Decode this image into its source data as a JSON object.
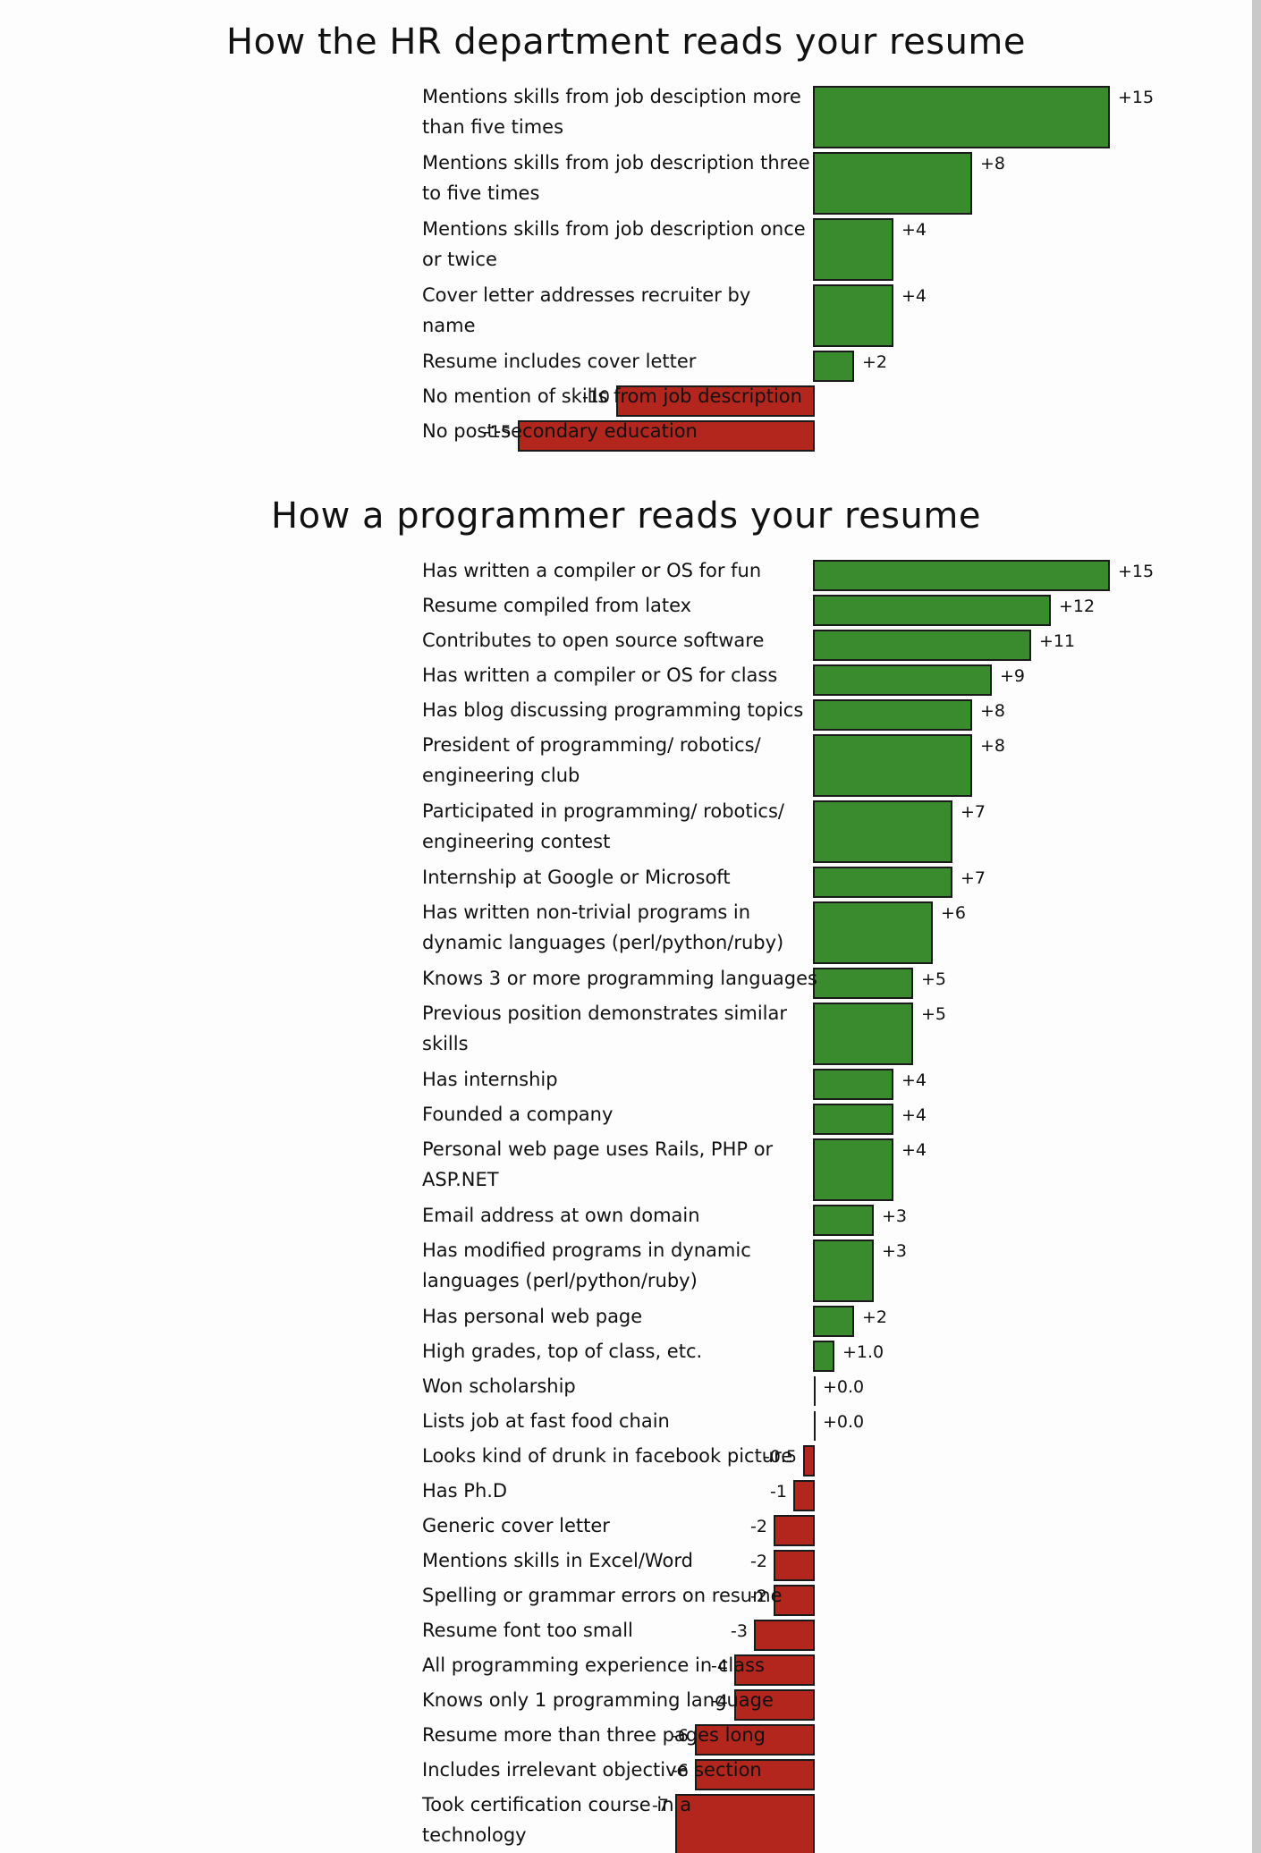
{
  "colors": {
    "positive": "#3a8a2e",
    "negative": "#b3261e",
    "background": "#fdfdfd",
    "scrollbar": "#c9c9c9"
  },
  "chart_data": [
    {
      "type": "bar",
      "orientation": "horizontal",
      "title": "How the HR department reads your resume",
      "categories": [
        "Mentions skills from job desciption more than five times",
        "Mentions skills from job description three to five times",
        "Mentions skills from job description once or twice",
        "Cover letter addresses recruiter by name",
        "Resume includes cover letter",
        "No mention of skills from job description",
        "No post-secondary education"
      ],
      "label_lines": [
        [
          "Mentions skills from job desciption more",
          "than five times"
        ],
        [
          "Mentions skills from job description three",
          "to five times"
        ],
        [
          "Mentions skills from job description once",
          "or twice"
        ],
        [
          "Cover letter addresses recruiter by",
          "name"
        ],
        [
          "Resume includes cover letter"
        ],
        [
          "No mention of skills from job description"
        ],
        [
          "No post-secondary education"
        ]
      ],
      "values": [
        15,
        8,
        4,
        4,
        2,
        -10,
        -15
      ],
      "value_labels": [
        "+15",
        "+8",
        "+4",
        "+4",
        "+2",
        "-10",
        "-15"
      ]
    },
    {
      "type": "bar",
      "orientation": "horizontal",
      "title": "How a programmer reads your resume",
      "categories": [
        "Has written a compiler or OS for fun",
        "Resume compiled from latex",
        "Contributes to open source software",
        "Has written a compiler or OS for class",
        "Has blog discussing programming topics",
        "President of programming/ robotics/ engineering club",
        "Participated in programming/ robotics/ engineering contest",
        "Internship at Google or Microsoft",
        "Has written non-trivial programs in dynamic languages (perl/python/ruby)",
        "Knows 3 or more programming languages",
        "Previous position demonstrates similar skills",
        "Has internship",
        "Founded a company",
        "Personal web page uses Rails, PHP or ASP.NET",
        "Email address at own domain",
        "Has modified programs in dynamic languages (perl/python/ruby)",
        "Has personal web page",
        "High grades, top of class, etc.",
        "Won scholarship",
        "Lists job at fast food chain",
        "Looks kind of drunk in facebook picture",
        "Has Ph.D",
        "Generic cover letter",
        "Mentions skills in Excel/Word",
        "Spelling or grammar errors on resume",
        "Resume font too small",
        "All programming experience in class",
        "Knows only 1 programming language",
        "Resume more than three pages long",
        "Includes irrelevant objective section",
        "Took certification course in a technology"
      ],
      "label_lines": [
        [
          "Has written a compiler or OS for fun"
        ],
        [
          "Resume compiled from latex"
        ],
        [
          "Contributes to open source software"
        ],
        [
          "Has written a compiler or OS for class"
        ],
        [
          "Has blog discussing programming topics"
        ],
        [
          "President of programming/ robotics/",
          "engineering club"
        ],
        [
          "Participated in programming/ robotics/",
          "engineering contest"
        ],
        [
          "Internship at Google or Microsoft"
        ],
        [
          "Has written non-trivial programs in",
          "dynamic languages (perl/python/ruby)"
        ],
        [
          "Knows 3 or more programming languages"
        ],
        [
          "Previous position demonstrates similar",
          "skills"
        ],
        [
          "Has internship"
        ],
        [
          "Founded a company"
        ],
        [
          "Personal web page uses Rails, PHP or",
          "ASP.NET"
        ],
        [
          "Email address at own domain"
        ],
        [
          "Has modified programs in dynamic",
          "languages (perl/python/ruby)"
        ],
        [
          "Has personal web page"
        ],
        [
          "High grades, top of class, etc."
        ],
        [
          "Won scholarship"
        ],
        [
          "Lists job at fast food chain"
        ],
        [
          "Looks kind of drunk in facebook picture"
        ],
        [
          "Has Ph.D"
        ],
        [
          "Generic cover letter"
        ],
        [
          "Mentions skills in Excel/Word"
        ],
        [
          "Spelling or grammar errors on resume"
        ],
        [
          "Resume font too small"
        ],
        [
          "All programming experience in class"
        ],
        [
          "Knows only 1 programming language"
        ],
        [
          "Resume more than three pages long"
        ],
        [
          "Includes irrelevant objective section"
        ],
        [
          "Took certification course in a",
          "technology"
        ]
      ],
      "values": [
        15,
        12,
        11,
        9,
        8,
        8,
        7,
        7,
        6,
        5,
        5,
        4,
        4,
        4,
        3,
        3,
        2,
        1.0,
        0.0,
        0.0,
        -0.5,
        -1,
        -2,
        -2,
        -2,
        -3,
        -4,
        -4,
        -6,
        -6,
        -7
      ],
      "value_labels": [
        "+15",
        "+12",
        "+11",
        "+9",
        "+8",
        "+8",
        "+7",
        "+7",
        "+6",
        "+5",
        "+5",
        "+4",
        "+4",
        "+4",
        "+3",
        "+3",
        "+2",
        "+1.0",
        "+0.0",
        "+0.0",
        "-0.5",
        "-1",
        "-2",
        "-2",
        "-2",
        "-3",
        "-4",
        "-4",
        "-6",
        "-6",
        "-7"
      ]
    }
  ]
}
